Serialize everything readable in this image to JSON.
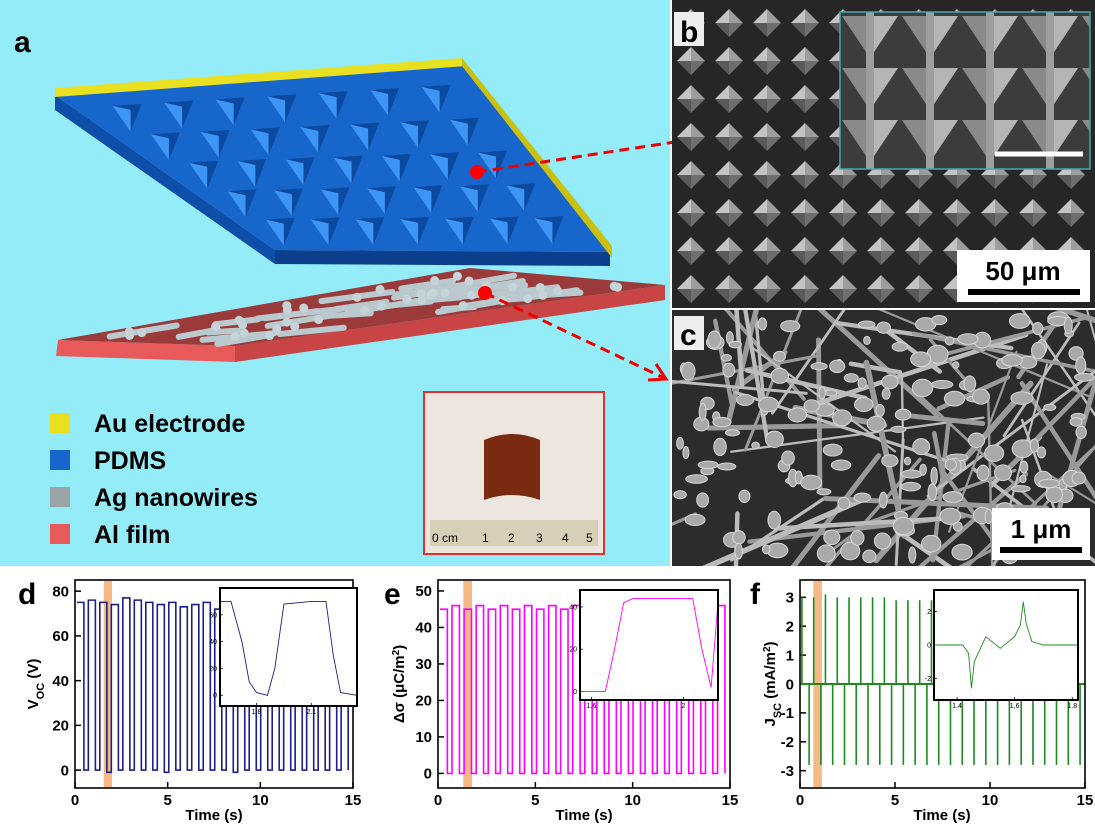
{
  "panel_a": {
    "label": "a",
    "legend": [
      "Au electrode",
      "PDMS",
      "Ag nanowires",
      "Al film"
    ],
    "ruler": [
      "0 cm",
      "1",
      "2",
      "3",
      "4",
      "5"
    ]
  },
  "panel_b": {
    "label": "b",
    "scale_bar": "50 μm"
  },
  "panel_c": {
    "label": "c",
    "scale_bar": "1 μm"
  },
  "chart_data": [
    {
      "type": "line",
      "step": true,
      "panel_label": "d",
      "xlabel": "Time (s)",
      "ylabel": [
        {
          "text": "V"
        },
        {
          "text": "OC",
          "script": "sub"
        },
        {
          "text": " (V)"
        }
      ],
      "color": "#1c1f8a",
      "highlight": [
        1.55,
        2.0
      ],
      "highlight_color": "#f5b887",
      "xlim": [
        0,
        15
      ],
      "xticks": [
        0,
        5,
        10,
        15
      ],
      "ylim": [
        -8,
        85
      ],
      "yticks": [
        0,
        20,
        40,
        60,
        80
      ],
      "x": [
        0.1,
        0.48,
        0.72,
        1.1,
        1.34,
        1.72,
        1.96,
        2.34,
        2.58,
        2.96,
        3.2,
        3.58,
        3.82,
        4.2,
        4.44,
        4.82,
        5.06,
        5.44,
        5.68,
        6.06,
        6.3,
        6.68,
        6.92,
        7.3,
        7.54,
        7.92,
        8.16,
        8.54,
        8.78,
        9.16,
        9.4,
        9.78,
        10.02,
        10.4,
        10.64,
        11.02,
        11.26,
        11.64,
        11.88,
        12.26,
        12.5,
        12.88,
        13.12,
        13.5,
        13.74,
        14.12,
        14.36,
        14.74
      ],
      "values": [
        75,
        0,
        76,
        0,
        75,
        -1,
        74,
        0,
        77,
        0,
        76,
        0,
        75,
        0,
        74,
        -1,
        75,
        0,
        73,
        0,
        74,
        0,
        75,
        0,
        72,
        0,
        73,
        -1,
        72,
        0,
        74,
        0,
        72,
        0,
        73,
        0,
        72,
        0,
        73,
        0,
        72,
        0,
        73,
        0,
        72,
        0,
        73,
        0
      ],
      "inset": {
        "type": "line",
        "xlim": [
          1.6,
          2.35
        ],
        "xticks": [
          1.8,
          2.1
        ],
        "ylim": [
          -8,
          80
        ],
        "yticks": [
          0,
          20,
          40,
          60
        ],
        "x": [
          1.6,
          1.66,
          1.72,
          1.76,
          1.8,
          1.86,
          1.9,
          1.95,
          2.1,
          2.18,
          2.22,
          2.26,
          2.35
        ],
        "values": [
          70,
          70,
          40,
          10,
          2,
          0,
          20,
          68,
          70,
          70,
          30,
          2,
          0
        ]
      }
    },
    {
      "type": "line",
      "step": true,
      "panel_label": "e",
      "xlabel": "Time (s)",
      "ylabel": [
        {
          "text": "Δσ (μC/m"
        },
        {
          "text": "2",
          "script": "super"
        },
        {
          "text": ")"
        }
      ],
      "color": "#ff00ff",
      "highlight": [
        1.3,
        1.75
      ],
      "highlight_color": "#f5b887",
      "xlim": [
        0,
        15
      ],
      "xticks": [
        0,
        5,
        10,
        15
      ],
      "ylim": [
        -4,
        53
      ],
      "yticks": [
        0,
        10,
        20,
        30,
        40,
        50
      ],
      "x": [
        0.1,
        0.48,
        0.72,
        1.1,
        1.34,
        1.72,
        1.96,
        2.34,
        2.58,
        2.96,
        3.2,
        3.58,
        3.82,
        4.2,
        4.44,
        4.82,
        5.06,
        5.44,
        5.68,
        6.06,
        6.3,
        6.68,
        6.92,
        7.3,
        7.54,
        7.92,
        8.16,
        8.54,
        8.78,
        9.16,
        9.4,
        9.78,
        10.02,
        10.4,
        10.64,
        11.02,
        11.26,
        11.64,
        11.88,
        12.26,
        12.5,
        12.88,
        13.12,
        13.5,
        13.74,
        14.12,
        14.36,
        14.74
      ],
      "values": [
        45,
        0,
        46,
        0,
        45,
        0,
        46,
        0,
        45,
        0,
        46,
        0,
        45,
        0,
        46,
        0,
        45,
        0,
        46,
        0,
        45,
        0,
        46,
        0,
        45,
        0,
        46,
        0,
        45,
        0,
        46,
        0,
        45,
        0,
        46,
        0,
        45,
        0,
        46,
        0,
        45,
        0,
        46,
        0,
        45,
        0,
        46,
        0
      ],
      "inset": {
        "type": "line",
        "xlim": [
          1.55,
          2.15
        ],
        "xticks": [
          1.6,
          2.0
        ],
        "ylim": [
          -4,
          48
        ],
        "yticks": [
          0,
          20,
          40
        ],
        "x": [
          1.55,
          1.66,
          1.7,
          1.74,
          1.78,
          1.9,
          2.04,
          2.08,
          2.12,
          2.15
        ],
        "values": [
          0,
          0,
          20,
          42,
          44,
          44,
          44,
          20,
          2,
          42
        ]
      }
    },
    {
      "type": "stem",
      "panel_label": "f",
      "xlabel": "Time (s)",
      "ylabel": [
        {
          "text": "J"
        },
        {
          "text": "SC",
          "script": "sub"
        },
        {
          "text": " (mA/m"
        },
        {
          "text": "2",
          "script": "super"
        },
        {
          "text": ")"
        }
      ],
      "color": "#1f8a1f",
      "highlight": [
        0.7,
        1.15
      ],
      "highlight_color": "#f5b887",
      "xlim": [
        0,
        15
      ],
      "xticks": [
        0,
        5,
        10,
        15
      ],
      "ylim": [
        -3.6,
        3.6
      ],
      "yticks": [
        -3,
        -2,
        -1,
        0,
        1,
        2,
        3
      ],
      "x": [
        0.1,
        0.48,
        0.72,
        1.1,
        1.34,
        1.72,
        1.96,
        2.34,
        2.58,
        2.96,
        3.2,
        3.58,
        3.82,
        4.2,
        4.44,
        4.82,
        5.06,
        5.44,
        5.68,
        6.06,
        6.3,
        6.68,
        6.92,
        7.3,
        7.54,
        7.92,
        8.16,
        8.54,
        8.78,
        9.16,
        9.4,
        9.78,
        10.02,
        10.4,
        10.64,
        11.02,
        11.26,
        11.64,
        11.88,
        12.26,
        12.5,
        12.88,
        13.12,
        13.5,
        13.74,
        14.12,
        14.36,
        14.74
      ],
      "values": [
        3,
        -2.8,
        3,
        -2.8,
        3.1,
        -2.8,
        3,
        -2.8,
        3,
        -2.8,
        3,
        -2.8,
        3,
        -2.8,
        3,
        -2.8,
        2.9,
        -2.8,
        2.9,
        -2.8,
        2.9,
        -2.8,
        2.9,
        -2.8,
        2.9,
        -2.8,
        2.8,
        -2.8,
        2.8,
        -2.8,
        2.8,
        -2.8,
        2.8,
        -2.8,
        2.8,
        -2.8,
        2.8,
        -2.8,
        2.8,
        -2.8,
        2.8,
        -2.8,
        2.8,
        -2.8,
        2.7,
        -2.8,
        2.7,
        -2.8
      ],
      "inset": {
        "type": "line",
        "xlim": [
          1.32,
          1.82
        ],
        "xticks": [
          1.4,
          1.6,
          1.8
        ],
        "ylim": [
          -3.3,
          3.3
        ],
        "yticks": [
          -2,
          0,
          2
        ],
        "x": [
          1.32,
          1.42,
          1.44,
          1.45,
          1.46,
          1.5,
          1.55,
          1.6,
          1.62,
          1.63,
          1.64,
          1.66,
          1.7,
          1.82
        ],
        "values": [
          0,
          0,
          -0.5,
          -2.6,
          -1,
          0.5,
          -0.2,
          0.5,
          1.2,
          2.6,
          1.3,
          0.2,
          0,
          0
        ]
      }
    }
  ]
}
